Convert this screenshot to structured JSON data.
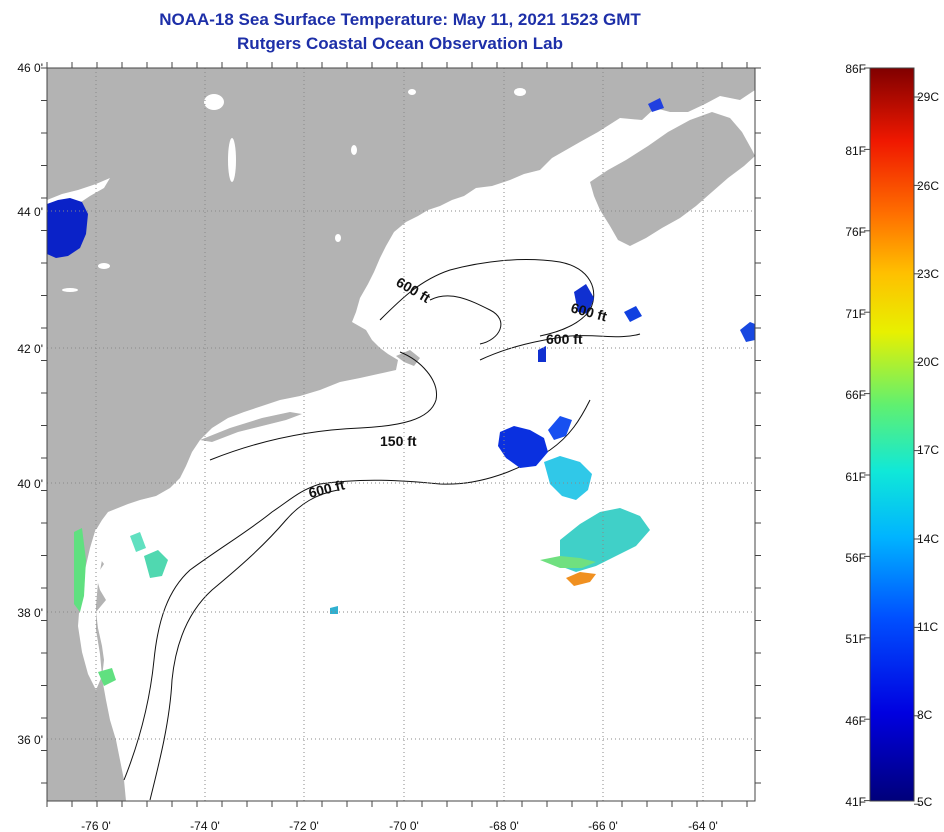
{
  "title": {
    "line1": "NOAA-18 Sea Surface Temperature:  May 11, 2021 1523 GMT",
    "line2": "Rutgers Coastal Ocean Observation Lab"
  },
  "lat_labels": [
    "46 0'",
    "44 0'",
    "42 0'",
    "40 0'",
    "38 0'",
    "36 0'"
  ],
  "lon_labels": [
    "-76 0'",
    "-74 0'",
    "-72 0'",
    "-70 0'",
    "-68 0'",
    "-66 0'",
    "-64 0'"
  ],
  "contour_labels": [
    "600 ft",
    "600 ft",
    "600 ft",
    "150 ft",
    "600 ft"
  ],
  "colorbar": {
    "fahrenheit": [
      "86F",
      "81F",
      "76F",
      "71F",
      "66F",
      "61F",
      "56F",
      "51F",
      "46F",
      "41F"
    ],
    "celsius": [
      "29C",
      "26C",
      "23C",
      "20C",
      "17C",
      "14C",
      "11C",
      "8C",
      "5C"
    ]
  },
  "colors": {
    "land": "#b3b3b3",
    "water": "#ffffff",
    "title": "#1d2fa8"
  }
}
